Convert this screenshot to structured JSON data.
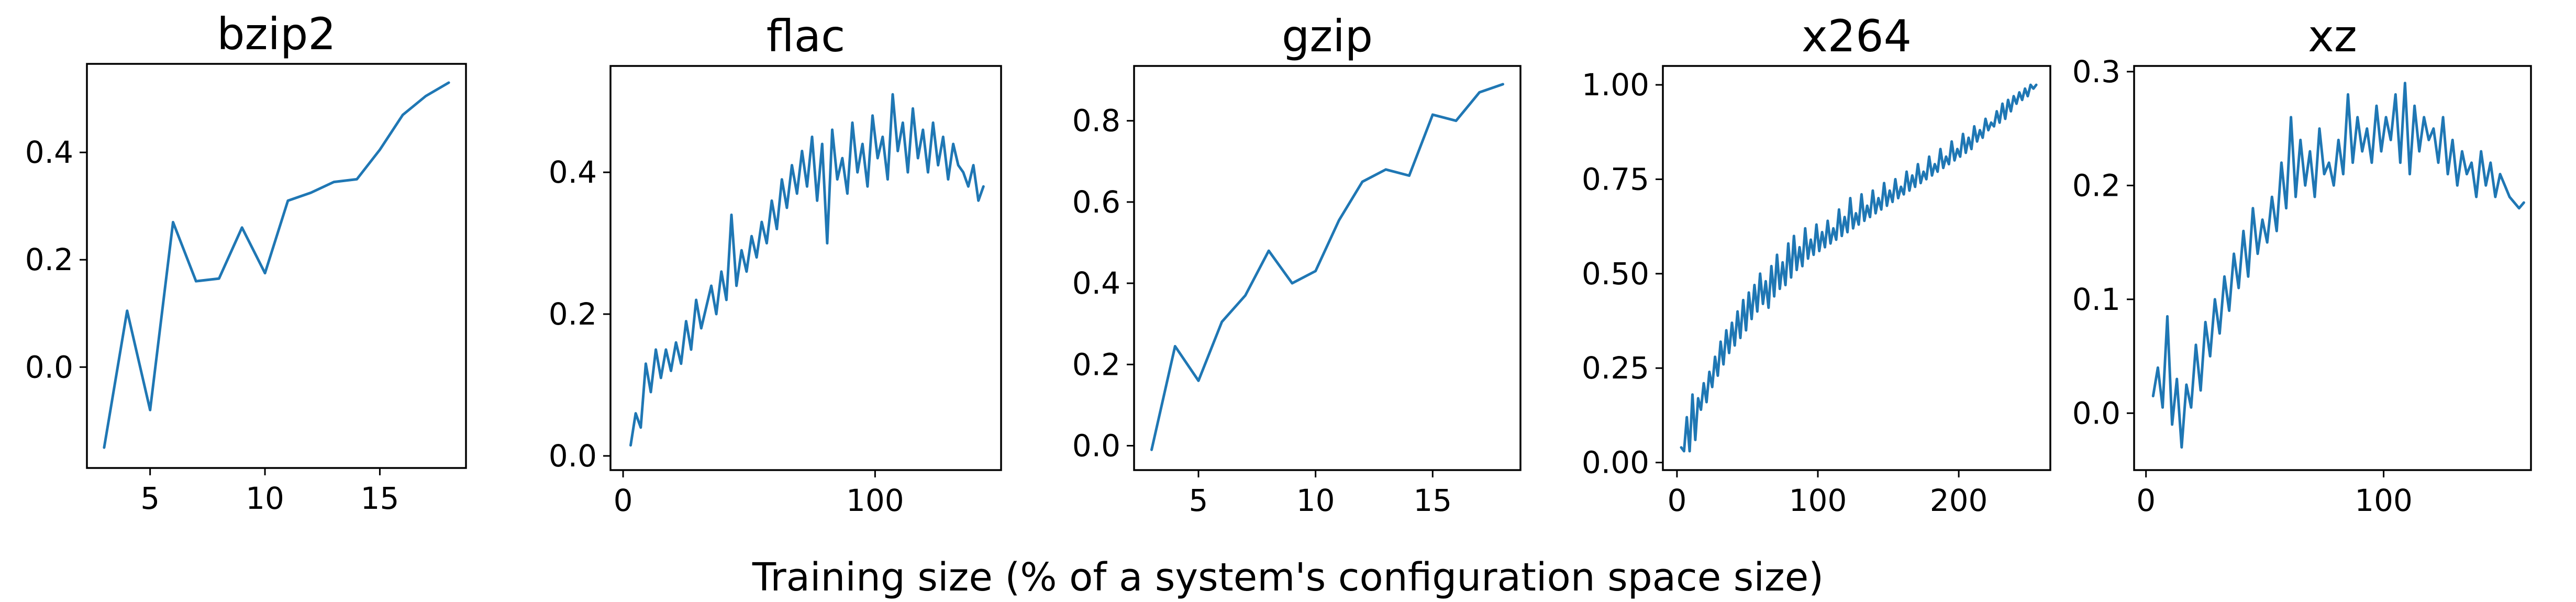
{
  "figure": {
    "xlabel": "Training size (% of a system's configuration space size)",
    "line_color": "#1f77b4"
  },
  "chart_data": [
    {
      "type": "line",
      "title": "bzip2",
      "xlabel": "",
      "ylabel": "",
      "xlim": [
        2.25,
        18.75
      ],
      "ylim": [
        -0.188,
        0.565
      ],
      "xticks": [
        5,
        10,
        15
      ],
      "yticks": [
        0.0,
        0.2,
        0.4
      ],
      "xtick_labels": [
        "5",
        "10",
        "15"
      ],
      "ytick_labels": [
        "0.0",
        "0.2",
        "0.4"
      ],
      "series": [
        {
          "x": [
            3,
            4,
            5,
            6,
            7,
            8,
            9,
            10,
            11,
            12,
            13,
            14,
            15,
            16,
            17,
            18
          ],
          "y": [
            -0.15,
            0.105,
            -0.08,
            0.27,
            0.16,
            0.165,
            0.26,
            0.175,
            0.31,
            0.325,
            0.345,
            0.35,
            0.405,
            0.47,
            0.505,
            0.53
          ]
        }
      ]
    },
    {
      "type": "line",
      "title": "flac",
      "xlabel": "",
      "ylabel": "",
      "xlim": [
        -5,
        150
      ],
      "ylim": [
        -0.02,
        0.55
      ],
      "xticks": [
        0,
        100
      ],
      "yticks": [
        0.0,
        0.2,
        0.4
      ],
      "xtick_labels": [
        "0",
        "100"
      ],
      "ytick_labels": [
        "0.0",
        "0.2",
        "0.4"
      ],
      "series": [
        {
          "x": [
            3,
            5,
            7,
            9,
            11,
            13,
            15,
            17,
            19,
            21,
            23,
            25,
            27,
            29,
            31,
            33,
            35,
            37,
            39,
            41,
            43,
            45,
            47,
            49,
            51,
            53,
            55,
            57,
            59,
            61,
            63,
            65,
            67,
            69,
            71,
            73,
            75,
            77,
            79,
            81,
            83,
            85,
            87,
            89,
            91,
            93,
            95,
            97,
            99,
            101,
            103,
            105,
            107,
            109,
            111,
            113,
            115,
            117,
            119,
            121,
            123,
            125,
            127,
            129,
            131,
            133,
            135,
            137,
            139,
            141,
            143
          ],
          "y": [
            0.015,
            0.06,
            0.04,
            0.13,
            0.09,
            0.15,
            0.11,
            0.15,
            0.12,
            0.16,
            0.13,
            0.19,
            0.15,
            0.22,
            0.18,
            0.21,
            0.24,
            0.2,
            0.26,
            0.22,
            0.34,
            0.24,
            0.29,
            0.26,
            0.31,
            0.28,
            0.33,
            0.3,
            0.36,
            0.32,
            0.39,
            0.35,
            0.41,
            0.37,
            0.43,
            0.38,
            0.45,
            0.36,
            0.44,
            0.3,
            0.46,
            0.39,
            0.42,
            0.37,
            0.47,
            0.4,
            0.44,
            0.38,
            0.48,
            0.42,
            0.45,
            0.39,
            0.51,
            0.43,
            0.47,
            0.4,
            0.49,
            0.42,
            0.46,
            0.4,
            0.47,
            0.41,
            0.45,
            0.39,
            0.44,
            0.41,
            0.4,
            0.38,
            0.41,
            0.36,
            0.38
          ]
        }
      ]
    },
    {
      "type": "line",
      "title": "gzip",
      "xlabel": "",
      "ylabel": "",
      "xlim": [
        2.25,
        18.75
      ],
      "ylim": [
        -0.06,
        0.935
      ],
      "xticks": [
        5,
        10,
        15
      ],
      "yticks": [
        0.0,
        0.2,
        0.4,
        0.6,
        0.8
      ],
      "xtick_labels": [
        "5",
        "10",
        "15"
      ],
      "ytick_labels": [
        "0.0",
        "0.2",
        "0.4",
        "0.6",
        "0.8"
      ],
      "series": [
        {
          "x": [
            3,
            4,
            5,
            6,
            7,
            8,
            9,
            10,
            11,
            12,
            13,
            14,
            15,
            16,
            17,
            18
          ],
          "y": [
            -0.01,
            0.245,
            0.16,
            0.305,
            0.37,
            0.48,
            0.4,
            0.43,
            0.555,
            0.65,
            0.68,
            0.665,
            0.815,
            0.8,
            0.87,
            0.89
          ]
        }
      ]
    },
    {
      "type": "line",
      "title": "x264",
      "xlabel": "",
      "ylabel": "",
      "xlim": [
        -10,
        265
      ],
      "ylim": [
        -0.02,
        1.05
      ],
      "xticks": [
        0,
        100,
        200
      ],
      "yticks": [
        0.0,
        0.25,
        0.5,
        0.75,
        1.0
      ],
      "xtick_labels": [
        "0",
        "100",
        "200"
      ],
      "ytick_labels": [
        "0.00",
        "0.25",
        "0.50",
        "0.75",
        "1.00"
      ],
      "series": [
        {
          "x": [
            3,
            5,
            7,
            9,
            11,
            13,
            15,
            17,
            19,
            21,
            23,
            25,
            27,
            29,
            31,
            33,
            35,
            37,
            39,
            41,
            43,
            45,
            47,
            49,
            51,
            53,
            55,
            57,
            59,
            61,
            63,
            65,
            67,
            69,
            71,
            73,
            75,
            77,
            79,
            81,
            83,
            85,
            87,
            89,
            91,
            93,
            95,
            97,
            99,
            101,
            103,
            105,
            107,
            109,
            111,
            113,
            115,
            117,
            119,
            121,
            123,
            125,
            127,
            129,
            131,
            133,
            135,
            137,
            139,
            141,
            143,
            145,
            147,
            149,
            151,
            153,
            155,
            157,
            159,
            161,
            163,
            165,
            167,
            169,
            171,
            173,
            175,
            177,
            179,
            181,
            183,
            185,
            187,
            189,
            191,
            193,
            195,
            197,
            199,
            201,
            203,
            205,
            207,
            209,
            211,
            213,
            215,
            217,
            219,
            221,
            223,
            225,
            227,
            229,
            231,
            233,
            235,
            237,
            239,
            241,
            243,
            245,
            247,
            249,
            251,
            253,
            255
          ],
          "y": [
            0.04,
            0.03,
            0.12,
            0.03,
            0.18,
            0.06,
            0.17,
            0.14,
            0.21,
            0.16,
            0.24,
            0.2,
            0.28,
            0.23,
            0.32,
            0.26,
            0.35,
            0.29,
            0.37,
            0.31,
            0.4,
            0.33,
            0.43,
            0.35,
            0.45,
            0.38,
            0.47,
            0.4,
            0.5,
            0.42,
            0.48,
            0.41,
            0.52,
            0.44,
            0.55,
            0.46,
            0.53,
            0.47,
            0.58,
            0.49,
            0.6,
            0.51,
            0.57,
            0.52,
            0.62,
            0.54,
            0.59,
            0.55,
            0.63,
            0.56,
            0.61,
            0.57,
            0.64,
            0.58,
            0.62,
            0.59,
            0.67,
            0.6,
            0.65,
            0.61,
            0.7,
            0.62,
            0.66,
            0.63,
            0.71,
            0.64,
            0.68,
            0.65,
            0.72,
            0.66,
            0.7,
            0.67,
            0.74,
            0.68,
            0.72,
            0.69,
            0.75,
            0.7,
            0.73,
            0.71,
            0.77,
            0.72,
            0.76,
            0.73,
            0.79,
            0.74,
            0.77,
            0.75,
            0.81,
            0.76,
            0.79,
            0.77,
            0.83,
            0.78,
            0.81,
            0.79,
            0.85,
            0.8,
            0.83,
            0.81,
            0.87,
            0.82,
            0.86,
            0.83,
            0.89,
            0.85,
            0.88,
            0.86,
            0.91,
            0.88,
            0.9,
            0.89,
            0.93,
            0.9,
            0.95,
            0.91,
            0.96,
            0.93,
            0.97,
            0.95,
            0.98,
            0.96,
            0.99,
            0.97,
            1.0,
            0.99,
            1.0
          ]
        }
      ]
    },
    {
      "type": "line",
      "title": "xz",
      "xlabel": "",
      "ylabel": "",
      "xlim": [
        -5,
        162
      ],
      "ylim": [
        -0.05,
        0.305
      ],
      "xticks": [
        0,
        100
      ],
      "yticks": [
        0.0,
        0.1,
        0.2,
        0.3
      ],
      "xtick_labels": [
        "0",
        "100"
      ],
      "ytick_labels": [
        "0.0",
        "0.1",
        "0.2",
        "0.3"
      ],
      "series": [
        {
          "x": [
            3,
            5,
            7,
            9,
            11,
            13,
            15,
            17,
            19,
            21,
            23,
            25,
            27,
            29,
            31,
            33,
            35,
            37,
            39,
            41,
            43,
            45,
            47,
            49,
            51,
            53,
            55,
            57,
            59,
            61,
            63,
            65,
            67,
            69,
            71,
            73,
            75,
            77,
            79,
            81,
            83,
            85,
            87,
            89,
            91,
            93,
            95,
            97,
            99,
            101,
            103,
            105,
            107,
            109,
            111,
            113,
            115,
            117,
            119,
            121,
            123,
            125,
            127,
            129,
            131,
            133,
            135,
            137,
            139,
            141,
            143,
            145,
            147,
            149,
            151,
            153,
            155,
            157,
            159
          ],
          "y": [
            0.015,
            0.04,
            0.005,
            0.085,
            -0.01,
            0.03,
            -0.03,
            0.025,
            0.005,
            0.06,
            0.02,
            0.08,
            0.05,
            0.1,
            0.07,
            0.12,
            0.09,
            0.14,
            0.11,
            0.16,
            0.12,
            0.18,
            0.14,
            0.17,
            0.15,
            0.19,
            0.16,
            0.22,
            0.18,
            0.26,
            0.19,
            0.24,
            0.2,
            0.23,
            0.19,
            0.25,
            0.21,
            0.22,
            0.2,
            0.24,
            0.21,
            0.28,
            0.22,
            0.26,
            0.23,
            0.25,
            0.22,
            0.27,
            0.23,
            0.26,
            0.24,
            0.28,
            0.22,
            0.29,
            0.21,
            0.27,
            0.23,
            0.26,
            0.24,
            0.25,
            0.22,
            0.26,
            0.21,
            0.24,
            0.2,
            0.23,
            0.21,
            0.22,
            0.19,
            0.23,
            0.2,
            0.22,
            0.19,
            0.21,
            0.2,
            0.19,
            0.185,
            0.18,
            0.185
          ]
        }
      ]
    }
  ]
}
